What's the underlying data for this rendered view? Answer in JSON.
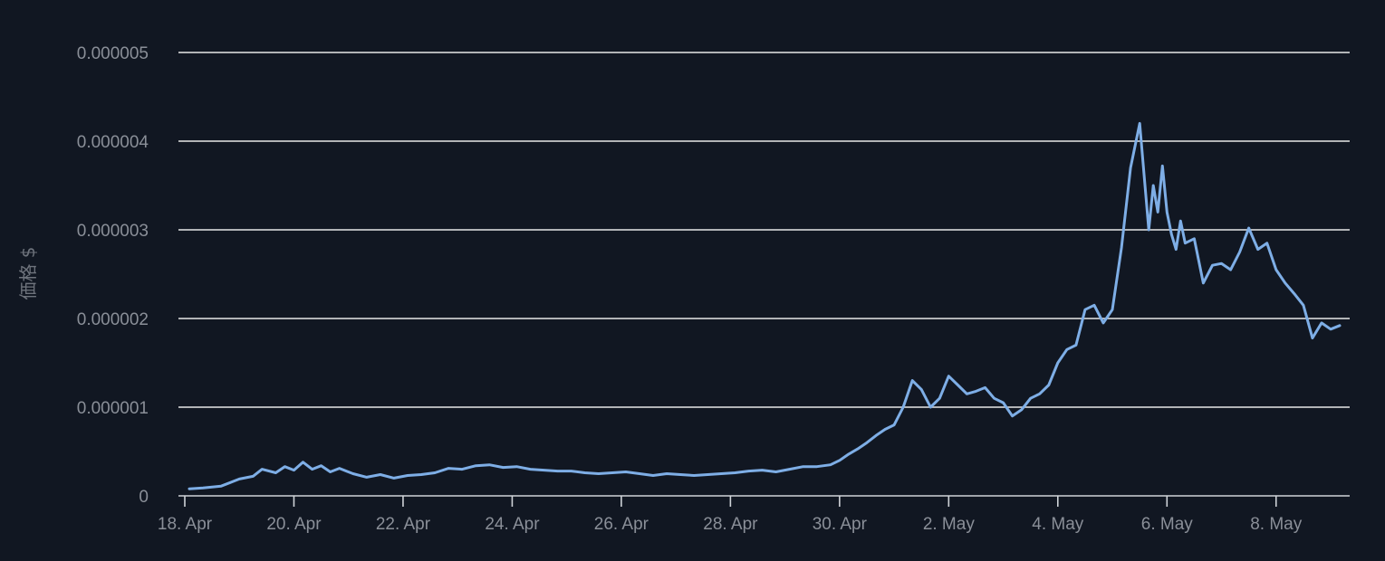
{
  "chart_data": {
    "type": "line",
    "title": "",
    "xlabel": "",
    "ylabel": "価格 $",
    "grid": true,
    "legend": "none",
    "color": "#7eaee6",
    "xlim": [
      "2024-04-18",
      "2024-05-09"
    ],
    "ylim": [
      0,
      5e-06
    ],
    "y_ticks": [
      {
        "value": 0,
        "label": "0"
      },
      {
        "value": 1e-06,
        "label": "0.000001"
      },
      {
        "value": 2e-06,
        "label": "0.000002"
      },
      {
        "value": 3e-06,
        "label": "0.000003"
      },
      {
        "value": 4e-06,
        "label": "0.000004"
      },
      {
        "value": 5e-06,
        "label": "0.000005"
      }
    ],
    "x_ticks": [
      {
        "value": "2024-04-18",
        "label": "18. Apr"
      },
      {
        "value": "2024-04-20",
        "label": "20. Apr"
      },
      {
        "value": "2024-04-22",
        "label": "22. Apr"
      },
      {
        "value": "2024-04-24",
        "label": "24. Apr"
      },
      {
        "value": "2024-04-26",
        "label": "26. Apr"
      },
      {
        "value": "2024-04-28",
        "label": "28. Apr"
      },
      {
        "value": "2024-04-30",
        "label": "30. Apr"
      },
      {
        "value": "2024-05-02",
        "label": "2. May"
      },
      {
        "value": "2024-05-04",
        "label": "4. May"
      },
      {
        "value": "2024-05-06",
        "label": "6. May"
      },
      {
        "value": "2024-05-08",
        "label": "8. May"
      }
    ],
    "series": [
      {
        "x": [
          "2024-04-18 02:00",
          "2024-04-18 08:00",
          "2024-04-18 16:00",
          "2024-04-19 00:00",
          "2024-04-19 06:00",
          "2024-04-19 10:00",
          "2024-04-19 16:00",
          "2024-04-19 20:00",
          "2024-04-20 00:00",
          "2024-04-20 04:00",
          "2024-04-20 08:00",
          "2024-04-20 12:00",
          "2024-04-20 16:00",
          "2024-04-20 20:00",
          "2024-04-21 02:00",
          "2024-04-21 08:00",
          "2024-04-21 14:00",
          "2024-04-21 20:00",
          "2024-04-22 02:00",
          "2024-04-22 08:00",
          "2024-04-22 14:00",
          "2024-04-22 20:00",
          "2024-04-23 02:00",
          "2024-04-23 08:00",
          "2024-04-23 14:00",
          "2024-04-23 20:00",
          "2024-04-24 02:00",
          "2024-04-24 08:00",
          "2024-04-24 14:00",
          "2024-04-24 20:00",
          "2024-04-25 02:00",
          "2024-04-25 08:00",
          "2024-04-25 14:00",
          "2024-04-25 20:00",
          "2024-04-26 02:00",
          "2024-04-26 08:00",
          "2024-04-26 14:00",
          "2024-04-26 20:00",
          "2024-04-27 02:00",
          "2024-04-27 08:00",
          "2024-04-27 14:00",
          "2024-04-27 20:00",
          "2024-04-28 02:00",
          "2024-04-28 08:00",
          "2024-04-28 14:00",
          "2024-04-28 20:00",
          "2024-04-29 02:00",
          "2024-04-29 08:00",
          "2024-04-29 14:00",
          "2024-04-29 20:00",
          "2024-04-30 00:00",
          "2024-04-30 04:00",
          "2024-04-30 08:00",
          "2024-04-30 12:00",
          "2024-04-30 16:00",
          "2024-04-30 20:00",
          "2024-05-01 00:00",
          "2024-05-01 04:00",
          "2024-05-01 08:00",
          "2024-05-01 12:00",
          "2024-05-01 16:00",
          "2024-05-01 20:00",
          "2024-05-02 00:00",
          "2024-05-02 04:00",
          "2024-05-02 08:00",
          "2024-05-02 12:00",
          "2024-05-02 16:00",
          "2024-05-02 20:00",
          "2024-05-03 00:00",
          "2024-05-03 04:00",
          "2024-05-03 08:00",
          "2024-05-03 12:00",
          "2024-05-03 16:00",
          "2024-05-03 20:00",
          "2024-05-04 00:00",
          "2024-05-04 04:00",
          "2024-05-04 08:00",
          "2024-05-04 12:00",
          "2024-05-04 16:00",
          "2024-05-04 20:00",
          "2024-05-05 00:00",
          "2024-05-05 04:00",
          "2024-05-05 08:00",
          "2024-05-05 12:00",
          "2024-05-05 16:00",
          "2024-05-05 18:00",
          "2024-05-05 20:00",
          "2024-05-05 22:00",
          "2024-05-06 00:00",
          "2024-05-06 02:00",
          "2024-05-06 04:00",
          "2024-05-06 06:00",
          "2024-05-06 08:00",
          "2024-05-06 12:00",
          "2024-05-06 16:00",
          "2024-05-06 20:00",
          "2024-05-07 00:00",
          "2024-05-07 04:00",
          "2024-05-07 08:00",
          "2024-05-07 12:00",
          "2024-05-07 16:00",
          "2024-05-07 20:00",
          "2024-05-08 00:00",
          "2024-05-08 04:00",
          "2024-05-08 08:00",
          "2024-05-08 12:00",
          "2024-05-08 16:00",
          "2024-05-08 20:00",
          "2024-05-09 00:00",
          "2024-05-09 04:00"
        ],
        "values": [
          8e-08,
          9e-08,
          1.1e-07,
          1.9e-07,
          2.2e-07,
          3e-07,
          2.6e-07,
          3.3e-07,
          2.9e-07,
          3.8e-07,
          3e-07,
          3.4e-07,
          2.7e-07,
          3.1e-07,
          2.5e-07,
          2.1e-07,
          2.4e-07,
          2e-07,
          2.3e-07,
          2.4e-07,
          2.6e-07,
          3.1e-07,
          3e-07,
          3.4e-07,
          3.5e-07,
          3.2e-07,
          3.3e-07,
          3e-07,
          2.9e-07,
          2.8e-07,
          2.8e-07,
          2.6e-07,
          2.5e-07,
          2.6e-07,
          2.7e-07,
          2.5e-07,
          2.3e-07,
          2.5e-07,
          2.4e-07,
          2.3e-07,
          2.4e-07,
          2.5e-07,
          2.6e-07,
          2.8e-07,
          2.9e-07,
          2.7e-07,
          3e-07,
          3.3e-07,
          3.3e-07,
          3.5e-07,
          4e-07,
          4.7e-07,
          5.3e-07,
          6e-07,
          6.8e-07,
          7.5e-07,
          8e-07,
          1e-06,
          1.3e-06,
          1.2e-06,
          1e-06,
          1.1e-06,
          1.35e-06,
          1.25e-06,
          1.15e-06,
          1.18e-06,
          1.22e-06,
          1.1e-06,
          1.05e-06,
          9e-07,
          9.7e-07,
          1.1e-06,
          1.15e-06,
          1.25e-06,
          1.5e-06,
          1.65e-06,
          1.7e-06,
          2.1e-06,
          2.15e-06,
          1.95e-06,
          2.1e-06,
          2.8e-06,
          3.7e-06,
          4.2e-06,
          3e-06,
          3.5e-06,
          3.2e-06,
          3.72e-06,
          3.2e-06,
          2.95e-06,
          2.78e-06,
          3.1e-06,
          2.85e-06,
          2.9e-06,
          2.4e-06,
          2.6e-06,
          2.62e-06,
          2.55e-06,
          2.75e-06,
          3.02e-06,
          2.78e-06,
          2.85e-06,
          2.55e-06,
          2.4e-06,
          2.28e-06,
          2.15e-06,
          1.78e-06,
          1.95e-06,
          1.88e-06,
          1.92e-06
        ]
      }
    ]
  }
}
